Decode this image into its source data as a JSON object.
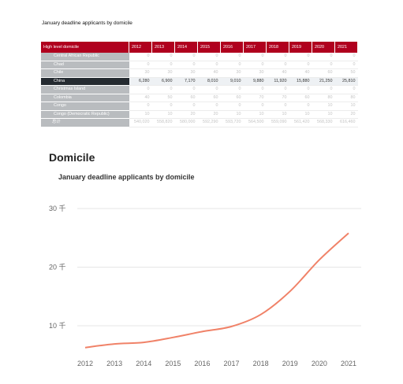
{
  "table": {
    "title": "January deadline applicants by domicile",
    "header_label": "High level domicile",
    "years": [
      "2012",
      "2013",
      "2014",
      "2015",
      "2016",
      "2017",
      "2018",
      "2019",
      "2020",
      "2021"
    ],
    "rows": [
      {
        "label": "Central African Republic",
        "cells": [
          "0",
          "0",
          "0",
          "0",
          "0",
          "0",
          "0",
          "0",
          "0",
          "0"
        ]
      },
      {
        "label": "Chad",
        "cells": [
          "0",
          "0",
          "0",
          "0",
          "0",
          "0",
          "0",
          "0",
          "0",
          "0"
        ]
      },
      {
        "label": "Chile",
        "cells": [
          "30",
          "30",
          "30",
          "40",
          "30",
          "30",
          "40",
          "40",
          "60",
          "50"
        ]
      },
      {
        "label": "China",
        "cells": [
          "6,280",
          "6,900",
          "7,170",
          "8,010",
          "9,010",
          "9,880",
          "11,920",
          "15,880",
          "21,250",
          "25,810"
        ],
        "highlight": true
      },
      {
        "label": "Christmas Island",
        "cells": [
          "0",
          "0",
          "0",
          "0",
          "0",
          "0",
          "0",
          "0",
          "0",
          "0"
        ]
      },
      {
        "label": "Colombia",
        "cells": [
          "40",
          "50",
          "60",
          "60",
          "60",
          "70",
          "70",
          "60",
          "80",
          "80"
        ]
      },
      {
        "label": "Congo",
        "cells": [
          "0",
          "0",
          "0",
          "0",
          "0",
          "0",
          "0",
          "0",
          "10",
          "10"
        ]
      },
      {
        "label": "Congo (Democratic Republic)",
        "cells": [
          "10",
          "10",
          "20",
          "20",
          "10",
          "10",
          "10",
          "10",
          "10",
          "20"
        ]
      },
      {
        "label": "总计",
        "cells": [
          "540,020",
          "558,820",
          "580,000",
          "592,290",
          "593,720",
          "564,500",
          "559,090",
          "561,420",
          "568,330",
          "616,460"
        ],
        "total": true
      }
    ]
  },
  "section_title": "Domicile",
  "chart_data": {
    "type": "line",
    "title": "January deadline applicants by domicile",
    "x": [
      "2012",
      "2013",
      "2014",
      "2015",
      "2016",
      "2017",
      "2018",
      "2019",
      "2020",
      "2021"
    ],
    "series": [
      {
        "values": [
          6280,
          6900,
          7170,
          8010,
          9010,
          9880,
          11920,
          15880,
          21250,
          25810
        ]
      }
    ],
    "ylim": [
      0,
      30000
    ],
    "yticks": [
      {
        "value": 10000,
        "label": "10 千"
      },
      {
        "value": 20000,
        "label": "20 千"
      },
      {
        "value": 30000,
        "label": "30 千"
      }
    ],
    "grid": true,
    "line_color": "#f08268",
    "grid_color": "#e6e6e6"
  }
}
